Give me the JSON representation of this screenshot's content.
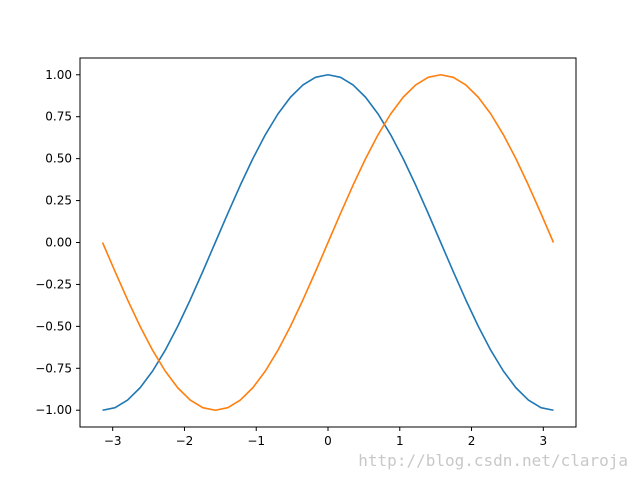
{
  "colors": {
    "series_1": "#1f77b4",
    "series_2": "#ff7f0e",
    "axes": "#000000",
    "watermark": "#c8c8c8"
  },
  "watermark": "http://blog.csdn.net/claroja",
  "chart_data": {
    "type": "line",
    "title": "",
    "xlabel": "",
    "ylabel": "",
    "xlim": [
      -3.4557,
      3.4557
    ],
    "ylim": [
      -1.1,
      1.1
    ],
    "grid": false,
    "legend": false,
    "x_ticks": [
      {
        "value": -3,
        "label": "−3"
      },
      {
        "value": -2,
        "label": "−2"
      },
      {
        "value": -1,
        "label": "−1"
      },
      {
        "value": 0,
        "label": "0"
      },
      {
        "value": 1,
        "label": "1"
      },
      {
        "value": 2,
        "label": "2"
      },
      {
        "value": 3,
        "label": "3"
      }
    ],
    "y_ticks": [
      {
        "value": 1.0,
        "label": "1.00"
      },
      {
        "value": 0.75,
        "label": "0.75"
      },
      {
        "value": 0.5,
        "label": "0.50"
      },
      {
        "value": 0.25,
        "label": "0.25"
      },
      {
        "value": 0.0,
        "label": "0.00"
      },
      {
        "value": -0.25,
        "label": "−0.25"
      },
      {
        "value": -0.5,
        "label": "−0.50"
      },
      {
        "value": -0.75,
        "label": "−0.75"
      },
      {
        "value": -1.0,
        "label": "−1.00"
      }
    ],
    "series": [
      {
        "color": "#1f77b4",
        "x": [
          -3.1416,
          -2.9671,
          -2.7925,
          -2.618,
          -2.4435,
          -2.2689,
          -2.0944,
          -1.9199,
          -1.7453,
          -1.5708,
          -1.3963,
          -1.2217,
          -1.0472,
          -0.8727,
          -0.6981,
          -0.5236,
          -0.3491,
          -0.1745,
          0.0,
          0.1745,
          0.3491,
          0.5236,
          0.6981,
          0.8727,
          1.0472,
          1.2217,
          1.3963,
          1.5708,
          1.7453,
          1.9199,
          2.0944,
          2.2689,
          2.4435,
          2.618,
          2.7925,
          2.9671,
          3.1416
        ],
        "y": [
          -1.0,
          -0.9848,
          -0.9397,
          -0.866,
          -0.766,
          -0.6428,
          -0.5,
          -0.342,
          -0.1736,
          0.0,
          0.1736,
          0.342,
          0.5,
          0.6428,
          0.766,
          0.866,
          0.9397,
          0.9848,
          1.0,
          0.9848,
          0.9397,
          0.866,
          0.766,
          0.6428,
          0.5,
          0.342,
          0.1736,
          0.0,
          -0.1736,
          -0.342,
          -0.5,
          -0.6428,
          -0.766,
          -0.866,
          -0.9397,
          -0.9848,
          -1.0
        ]
      },
      {
        "color": "#ff7f0e",
        "x": [
          -3.1416,
          -2.9671,
          -2.7925,
          -2.618,
          -2.4435,
          -2.2689,
          -2.0944,
          -1.9199,
          -1.7453,
          -1.5708,
          -1.3963,
          -1.2217,
          -1.0472,
          -0.8727,
          -0.6981,
          -0.5236,
          -0.3491,
          -0.1745,
          0.0,
          0.1745,
          0.3491,
          0.5236,
          0.6981,
          0.8727,
          1.0472,
          1.2217,
          1.3963,
          1.5708,
          1.7453,
          1.9199,
          2.0944,
          2.2689,
          2.4435,
          2.618,
          2.7925,
          2.9671,
          3.1416
        ],
        "y": [
          0.0,
          -0.1736,
          -0.342,
          -0.5,
          -0.6428,
          -0.766,
          -0.866,
          -0.9397,
          -0.9848,
          -1.0,
          -0.9848,
          -0.9397,
          -0.866,
          -0.766,
          -0.6428,
          -0.5,
          -0.342,
          -0.1736,
          0.0,
          0.1736,
          0.342,
          0.5,
          0.6428,
          0.766,
          0.866,
          0.9397,
          0.9848,
          1.0,
          0.9848,
          0.9397,
          0.866,
          0.766,
          0.6428,
          0.5,
          0.342,
          0.1736,
          0.0
        ]
      }
    ]
  }
}
